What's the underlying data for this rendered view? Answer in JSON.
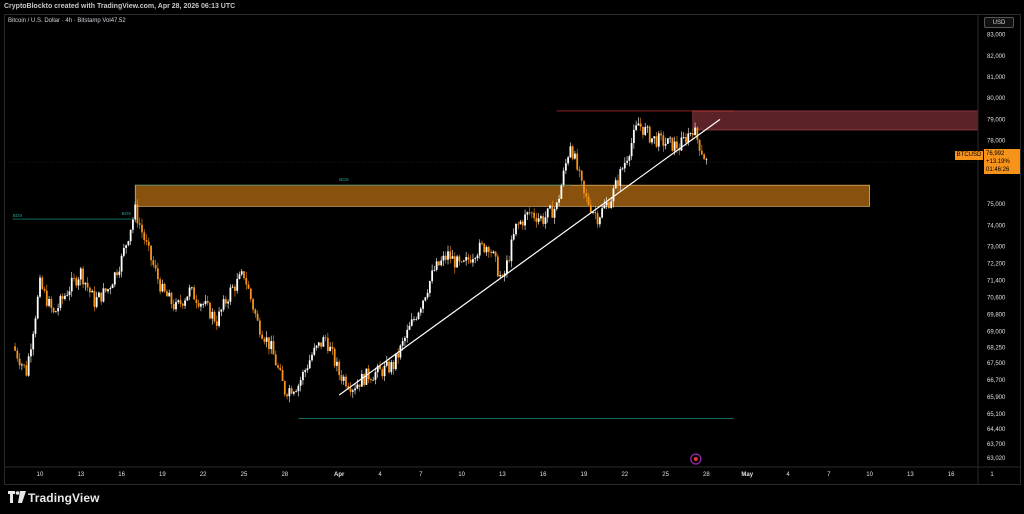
{
  "header": {
    "attribution": "CryptoBlockto created with TradingView.com, Apr 28, 2026 06:13 UTC"
  },
  "legend": {
    "symbol_line": "Bitcoin / U.S. Dollar · 4h · Bitstamp  Vol47.52"
  },
  "currency_button": "USD",
  "last_price": {
    "ticker": "BTCUSD",
    "price": "76,992",
    "change": "+13.19%",
    "countdown": "01:46:26"
  },
  "branding": {
    "logo_text": "TradingView"
  },
  "colors": {
    "up_candle": "#ffffff",
    "down_candle": "#f7931a",
    "orange_zone": "#f7931a",
    "supply_zone": "#7a2e34",
    "trendline": "#ffffff",
    "structure_green": "#26a69a",
    "structure_red": "#e53935",
    "event_icon": "#9c27b0"
  },
  "chart_data": {
    "type": "candlestick",
    "timeframe": "4h",
    "x_axis_ticks": [
      "10",
      "13",
      "16",
      "19",
      "22",
      "25",
      "28",
      "Apr",
      "4",
      "7",
      "10",
      "13",
      "16",
      "19",
      "22",
      "25",
      "28",
      "May",
      "4",
      "7",
      "10",
      "13",
      "16",
      "1"
    ],
    "y_axis_ticks": [
      "83,000",
      "82,000",
      "81,000",
      "80,000",
      "79,000",
      "78,000",
      "76,992",
      "75,000",
      "74,000",
      "73,000",
      "72,200",
      "71,400",
      "70,600",
      "69,800",
      "69,000",
      "68,250",
      "67,500",
      "66,700",
      "65,900",
      "65,100",
      "64,400",
      "63,700",
      "63,020"
    ],
    "y_range": [
      62700,
      83500
    ],
    "price_path": [
      {
        "date": "Mar 8",
        "price": 68300
      },
      {
        "date": "Mar 9",
        "price": 67100
      },
      {
        "date": "Mar 10",
        "price": 71200
      },
      {
        "date": "Mar 11",
        "price": 69800
      },
      {
        "date": "Mar 12",
        "price": 70900
      },
      {
        "date": "Mar 13",
        "price": 71800
      },
      {
        "date": "Mar 14",
        "price": 70400
      },
      {
        "date": "Mar 15",
        "price": 71000
      },
      {
        "date": "Mar 16",
        "price": 72400
      },
      {
        "date": "Mar 17",
        "price": 74700
      },
      {
        "date": "Mar 18",
        "price": 72700
      },
      {
        "date": "Mar 19",
        "price": 70900
      },
      {
        "date": "Mar 20",
        "price": 70100
      },
      {
        "date": "Mar 21",
        "price": 70900
      },
      {
        "date": "Mar 22",
        "price": 70300
      },
      {
        "date": "Mar 23",
        "price": 69500
      },
      {
        "date": "Mar 24",
        "price": 70900
      },
      {
        "date": "Mar 25",
        "price": 71700
      },
      {
        "date": "Mar 26",
        "price": 69400
      },
      {
        "date": "Mar 27",
        "price": 68200
      },
      {
        "date": "Mar 28",
        "price": 66200
      },
      {
        "date": "Mar 29",
        "price": 66500
      },
      {
        "date": "Mar 30",
        "price": 67900
      },
      {
        "date": "Mar 31",
        "price": 68700
      },
      {
        "date": "Apr 1",
        "price": 67000
      },
      {
        "date": "Apr 2",
        "price": 66400
      },
      {
        "date": "Apr 3",
        "price": 66900
      },
      {
        "date": "Apr 4",
        "price": 67100
      },
      {
        "date": "Apr 5",
        "price": 67400
      },
      {
        "date": "Apr 6",
        "price": 68900
      },
      {
        "date": "Apr 7",
        "price": 70300
      },
      {
        "date": "Apr 8",
        "price": 71900
      },
      {
        "date": "Apr 9",
        "price": 72600
      },
      {
        "date": "Apr 10",
        "price": 72000
      },
      {
        "date": "Apr 11",
        "price": 72800
      },
      {
        "date": "Apr 12",
        "price": 73100
      },
      {
        "date": "Apr 13",
        "price": 71300
      },
      {
        "date": "Apr 14",
        "price": 73900
      },
      {
        "date": "Apr 15",
        "price": 74600
      },
      {
        "date": "Apr 16",
        "price": 74300
      },
      {
        "date": "Apr 17",
        "price": 74900
      },
      {
        "date": "Apr 18",
        "price": 77900
      },
      {
        "date": "Apr 19",
        "price": 75400
      },
      {
        "date": "Apr 20",
        "price": 74400
      },
      {
        "date": "Apr 21",
        "price": 75300
      },
      {
        "date": "Apr 22",
        "price": 77000
      },
      {
        "date": "Apr 23",
        "price": 78800
      },
      {
        "date": "Apr 24",
        "price": 78100
      },
      {
        "date": "Apr 25",
        "price": 77900
      },
      {
        "date": "Apr 26",
        "price": 77700
      },
      {
        "date": "Apr 27",
        "price": 78600
      },
      {
        "date": "Apr 28",
        "price": 76992
      }
    ],
    "zones": [
      {
        "name": "orange-demand-zone",
        "from": "Mar 17",
        "to": "May 10",
        "low": 74900,
        "high": 75900
      },
      {
        "name": "supply-zone",
        "from": "Apr 27",
        "to": "Jun 1",
        "low": 78500,
        "high": 79400
      }
    ],
    "trendline": {
      "from": {
        "date": "Apr 1",
        "price": 66000
      },
      "to": {
        "date": "Apr 29",
        "price": 79000
      }
    },
    "levels": [
      {
        "name": "bos-upper",
        "from": "Mar 17",
        "to": "Apr 18",
        "price": 75900
      },
      {
        "name": "bos-left",
        "from": "Mar 8",
        "to": "Mar 17",
        "price": 74300
      },
      {
        "name": "low-line",
        "from": "Mar 29",
        "to": "Apr 30",
        "price": 64900
      },
      {
        "name": "high-line",
        "from": "Apr 17",
        "to": "Apr 30",
        "price": 79400
      }
    ],
    "annotations": [
      "BOS",
      "BOS",
      "BOS"
    ]
  }
}
